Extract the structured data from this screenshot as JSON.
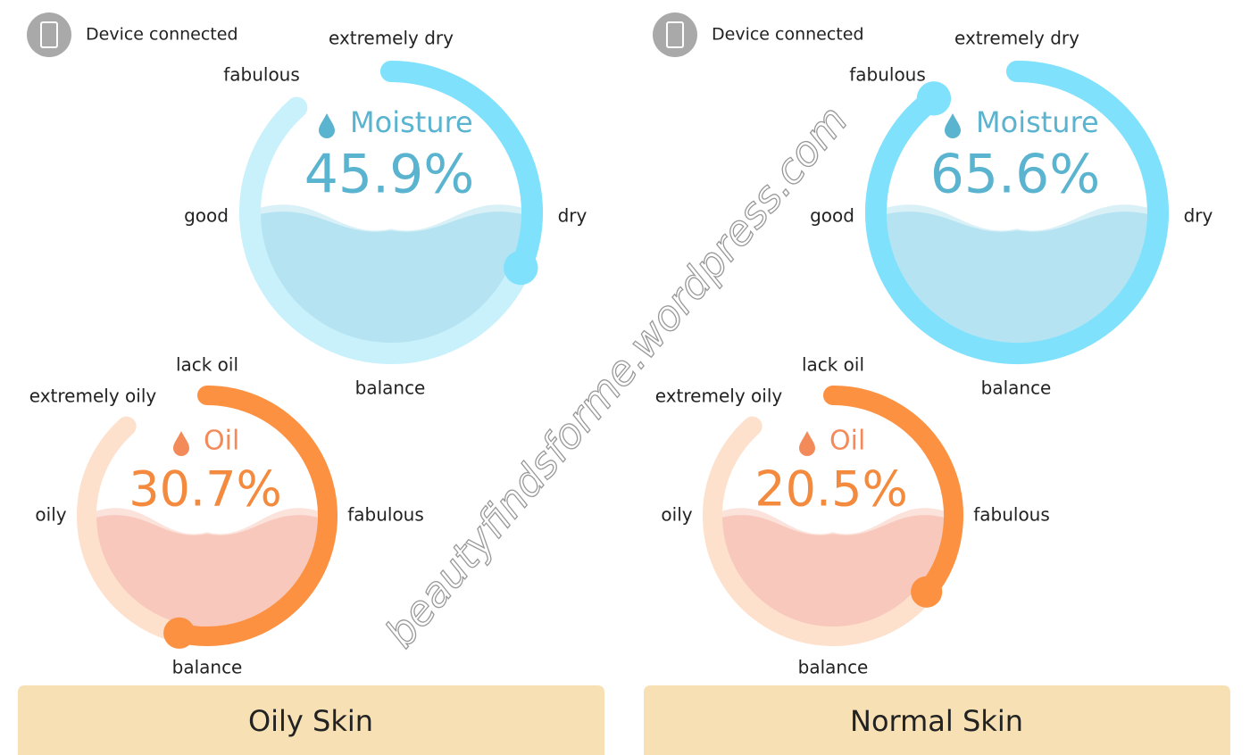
{
  "panels": [
    {
      "status": "Device connected",
      "moisture": {
        "title": "Moisture",
        "value": 45.9,
        "value_label": "45.9%",
        "labels": {
          "top": "extremely dry",
          "top_left": "fabulous",
          "left": "good",
          "right": "dry",
          "bottom": "balance"
        }
      },
      "oil": {
        "title": "Oil",
        "value": 30.7,
        "value_label": "30.7%",
        "labels": {
          "top": "lack oil",
          "top_left": "extremely oily",
          "left": "oily",
          "right": "fabulous",
          "bottom": "balance"
        }
      },
      "result": "Oily Skin"
    },
    {
      "status": "Device connected",
      "moisture": {
        "title": "Moisture",
        "value": 65.6,
        "value_label": "65.6%",
        "labels": {
          "top": "extremely dry",
          "top_left": "fabulous",
          "left": "good",
          "right": "dry",
          "bottom": "balance"
        }
      },
      "oil": {
        "title": "Oil",
        "value": 20.5,
        "value_label": "20.5%",
        "labels": {
          "top": "lack oil",
          "top_left": "extremely oily",
          "left": "oily",
          "right": "fabulous",
          "bottom": "balance"
        }
      },
      "result": "Normal Skin"
    }
  ],
  "watermark": "beautyfindsforme.wordpress.com"
}
